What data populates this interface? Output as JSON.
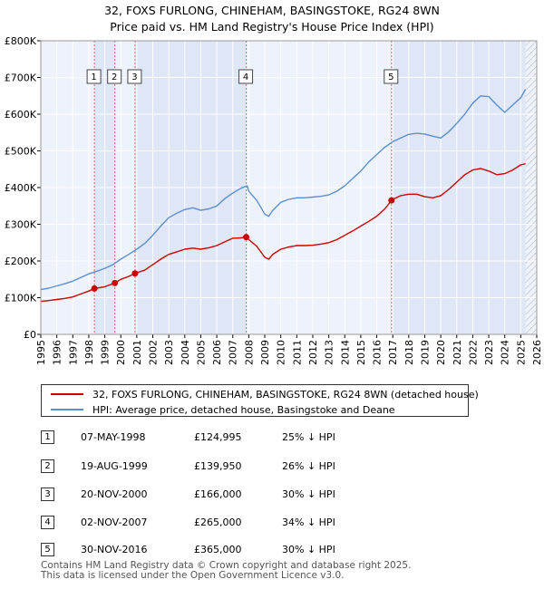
{
  "chart_data": {
    "type": "line",
    "title": "32, FOXS FURLONG, CHINEHAM, BASINGSTOKE, RG24 8WN",
    "subtitle": "Price paid vs. HM Land Registry's House Price Index (HPI)",
    "xlim": [
      1995,
      2026
    ],
    "ylim": [
      0,
      800000
    ],
    "y_ticks": [
      0,
      100000,
      200000,
      300000,
      400000,
      500000,
      600000,
      700000,
      800000
    ],
    "y_tick_labels": [
      "£0",
      "£100K",
      "£200K",
      "£300K",
      "£400K",
      "£500K",
      "£600K",
      "£700K",
      "£800K"
    ],
    "x_ticks": [
      1995,
      1996,
      1997,
      1998,
      1999,
      2000,
      2001,
      2002,
      2003,
      2004,
      2005,
      2006,
      2007,
      2008,
      2009,
      2010,
      2011,
      2012,
      2013,
      2014,
      2015,
      2016,
      2017,
      2018,
      2019,
      2020,
      2021,
      2022,
      2023,
      2024,
      2025,
      2026
    ],
    "x_tick_labels": [
      "1995",
      "1996",
      "1997",
      "1998",
      "1999",
      "2000",
      "2001",
      "2002",
      "2003",
      "2004",
      "2005",
      "2006",
      "2007",
      "2008",
      "2009",
      "2010",
      "2011",
      "2012",
      "2013",
      "2014",
      "2015",
      "2016",
      "2017",
      "2018",
      "2019",
      "2020",
      "2021",
      "2022",
      "2023",
      "2024",
      "2025",
      "2026"
    ],
    "grid": true,
    "shaded_spans": [
      [
        1998.35,
        1999.63
      ],
      [
        2000.89,
        2007.84
      ],
      [
        2016.92,
        2025.3
      ]
    ],
    "hatched_from": 2025.3,
    "series": [
      {
        "name": "32, FOXS FURLONG, CHINEHAM, BASINGSTOKE, RG24 8WN (detached house)",
        "color": "#cc0000",
        "x": [
          1995,
          1995.5,
          1996,
          1996.5,
          1997,
          1997.5,
          1998,
          1998.35,
          1998.5,
          1999,
          1999.63,
          2000,
          2000.5,
          2000.89,
          2001,
          2001.5,
          2002,
          2002.5,
          2003,
          2003.5,
          2004,
          2004.5,
          2005,
          2005.5,
          2006,
          2006.5,
          2007,
          2007.5,
          2007.84,
          2008,
          2008.5,
          2009,
          2009.25,
          2009.5,
          2010,
          2010.5,
          2011,
          2011.5,
          2012,
          2012.5,
          2013,
          2013.5,
          2014,
          2014.5,
          2015,
          2015.5,
          2016,
          2016.5,
          2016.92,
          2017,
          2017.5,
          2018,
          2018.5,
          2019,
          2019.5,
          2020,
          2020.5,
          2021,
          2021.5,
          2022,
          2022.5,
          2023,
          2023.5,
          2024,
          2024.5,
          2025,
          2025.3
        ],
        "values": [
          90000,
          92000,
          95000,
          98000,
          102000,
          110000,
          118000,
          124995,
          126000,
          130000,
          139950,
          150000,
          158000,
          166000,
          168000,
          175000,
          190000,
          205000,
          218000,
          225000,
          232000,
          235000,
          232000,
          236000,
          242000,
          252000,
          262000,
          263000,
          265000,
          258000,
          240000,
          210000,
          205000,
          218000,
          232000,
          238000,
          242000,
          242000,
          243000,
          246000,
          250000,
          258000,
          270000,
          282000,
          295000,
          308000,
          322000,
          342000,
          365000,
          368000,
          378000,
          382000,
          382000,
          375000,
          372000,
          378000,
          395000,
          415000,
          435000,
          448000,
          452000,
          445000,
          435000,
          438000,
          448000,
          462000,
          465000
        ]
      },
      {
        "name": "HPI: Average price, detached house, Basingstoke and Deane",
        "color": "#5b8fd0",
        "x": [
          1995,
          1995.5,
          1996,
          1996.5,
          1997,
          1997.5,
          1998,
          1998.5,
          1999,
          1999.5,
          2000,
          2000.5,
          2001,
          2001.5,
          2002,
          2002.5,
          2003,
          2003.5,
          2004,
          2004.5,
          2005,
          2005.5,
          2006,
          2006.5,
          2007,
          2007.5,
          2007.9,
          2008,
          2008.5,
          2009,
          2009.25,
          2009.5,
          2010,
          2010.5,
          2011,
          2011.5,
          2012,
          2012.5,
          2013,
          2013.5,
          2014,
          2014.5,
          2015,
          2015.5,
          2016,
          2016.5,
          2017,
          2017.5,
          2018,
          2018.5,
          2019,
          2019.5,
          2020,
          2020.5,
          2021,
          2021.5,
          2022,
          2022.5,
          2023,
          2023.5,
          2024,
          2024.5,
          2025,
          2025.3
        ],
        "values": [
          122000,
          126000,
          132000,
          138000,
          145000,
          155000,
          165000,
          172000,
          180000,
          190000,
          205000,
          218000,
          232000,
          248000,
          270000,
          295000,
          318000,
          330000,
          340000,
          345000,
          338000,
          342000,
          350000,
          370000,
          385000,
          398000,
          405000,
          390000,
          365000,
          328000,
          322000,
          338000,
          360000,
          368000,
          372000,
          372000,
          374000,
          376000,
          380000,
          390000,
          405000,
          425000,
          445000,
          470000,
          490000,
          510000,
          525000,
          535000,
          545000,
          548000,
          546000,
          540000,
          535000,
          552000,
          575000,
          600000,
          630000,
          650000,
          648000,
          625000,
          605000,
          625000,
          645000,
          668000
        ]
      }
    ],
    "sales": [
      {
        "label": "1",
        "x": 1998.35,
        "price": 124995
      },
      {
        "label": "2",
        "x": 1999.63,
        "price": 139950
      },
      {
        "label": "3",
        "x": 2000.89,
        "price": 166000
      },
      {
        "label": "4",
        "x": 2007.84,
        "price": 265000
      },
      {
        "label": "5",
        "x": 2016.92,
        "price": 365000
      }
    ]
  },
  "legend": {
    "property_label": "32, FOXS FURLONG, CHINEHAM, BASINGSTOKE, RG24 8WN (detached house)",
    "hpi_label": "HPI: Average price, detached house, Basingstoke and Deane"
  },
  "sales_table": [
    {
      "num": "1",
      "date": "07-MAY-1998",
      "price": "£124,995",
      "hpi": "25% ↓ HPI"
    },
    {
      "num": "2",
      "date": "19-AUG-1999",
      "price": "£139,950",
      "hpi": "26% ↓ HPI"
    },
    {
      "num": "3",
      "date": "20-NOV-2000",
      "price": "£166,000",
      "hpi": "30% ↓ HPI"
    },
    {
      "num": "4",
      "date": "02-NOV-2007",
      "price": "£265,000",
      "hpi": "34% ↓ HPI"
    },
    {
      "num": "5",
      "date": "30-NOV-2016",
      "price": "£365,000",
      "hpi": "30% ↓ HPI"
    }
  ],
  "footer": {
    "line1": "Contains HM Land Registry data © Crown copyright and database right 2025.",
    "line2": "This data is licensed under the Open Government Licence v3.0."
  },
  "colors": {
    "property": "#cc0000",
    "hpi": "#5b8fd0",
    "plot_bg": "#eef2fb",
    "shade": "#dfe6f6",
    "grid": "#ffffff",
    "sale_line": "#e06666"
  }
}
